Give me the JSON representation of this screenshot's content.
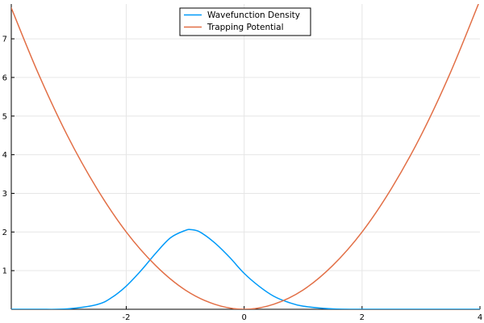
{
  "chart_data": {
    "type": "line",
    "title": "",
    "xlabel": "",
    "ylabel": "",
    "xlim": [
      -3.95,
      4.0
    ],
    "ylim": [
      0,
      7.9
    ],
    "grid": true,
    "legend_position": "top-center",
    "x_ticks": [
      -2,
      0,
      2,
      4
    ],
    "x_tick_labels": [
      "-2",
      "0",
      "2",
      "4"
    ],
    "y_ticks": [
      1,
      2,
      3,
      4,
      5,
      6,
      7
    ],
    "y_tick_labels": [
      "1",
      "2",
      "3",
      "4",
      "5",
      "6",
      "7"
    ],
    "series": [
      {
        "name": "Wavefunction Density",
        "color": "#009af9",
        "x": [
          -3.95,
          -3.5,
          -3.0,
          -2.5,
          -2.25,
          -2.0,
          -1.75,
          -1.5,
          -1.25,
          -1.0,
          -0.9,
          -0.75,
          -0.5,
          -0.25,
          0.0,
          0.25,
          0.5,
          0.75,
          1.0,
          1.5,
          2.0,
          2.5,
          3.0,
          4.0
        ],
        "y": [
          0.0,
          0.0,
          0.01,
          0.12,
          0.3,
          0.6,
          1.0,
          1.45,
          1.85,
          2.04,
          2.06,
          2.0,
          1.72,
          1.35,
          0.93,
          0.6,
          0.34,
          0.18,
          0.08,
          0.01,
          0.0,
          0.0,
          0.0,
          0.0
        ]
      },
      {
        "name": "Trapping Potential",
        "color": "#e26f46",
        "x": [
          -3.95,
          -3.5,
          -3.0,
          -2.5,
          -2.0,
          -1.5,
          -1.0,
          -0.5,
          0.0,
          0.5,
          1.0,
          1.5,
          2.0,
          2.5,
          3.0,
          3.5,
          4.0
        ],
        "y": [
          7.8,
          6.13,
          4.5,
          3.13,
          2.0,
          1.13,
          0.5,
          0.13,
          0.0,
          0.13,
          0.5,
          1.13,
          2.0,
          3.13,
          4.5,
          6.13,
          8.0
        ]
      }
    ]
  }
}
